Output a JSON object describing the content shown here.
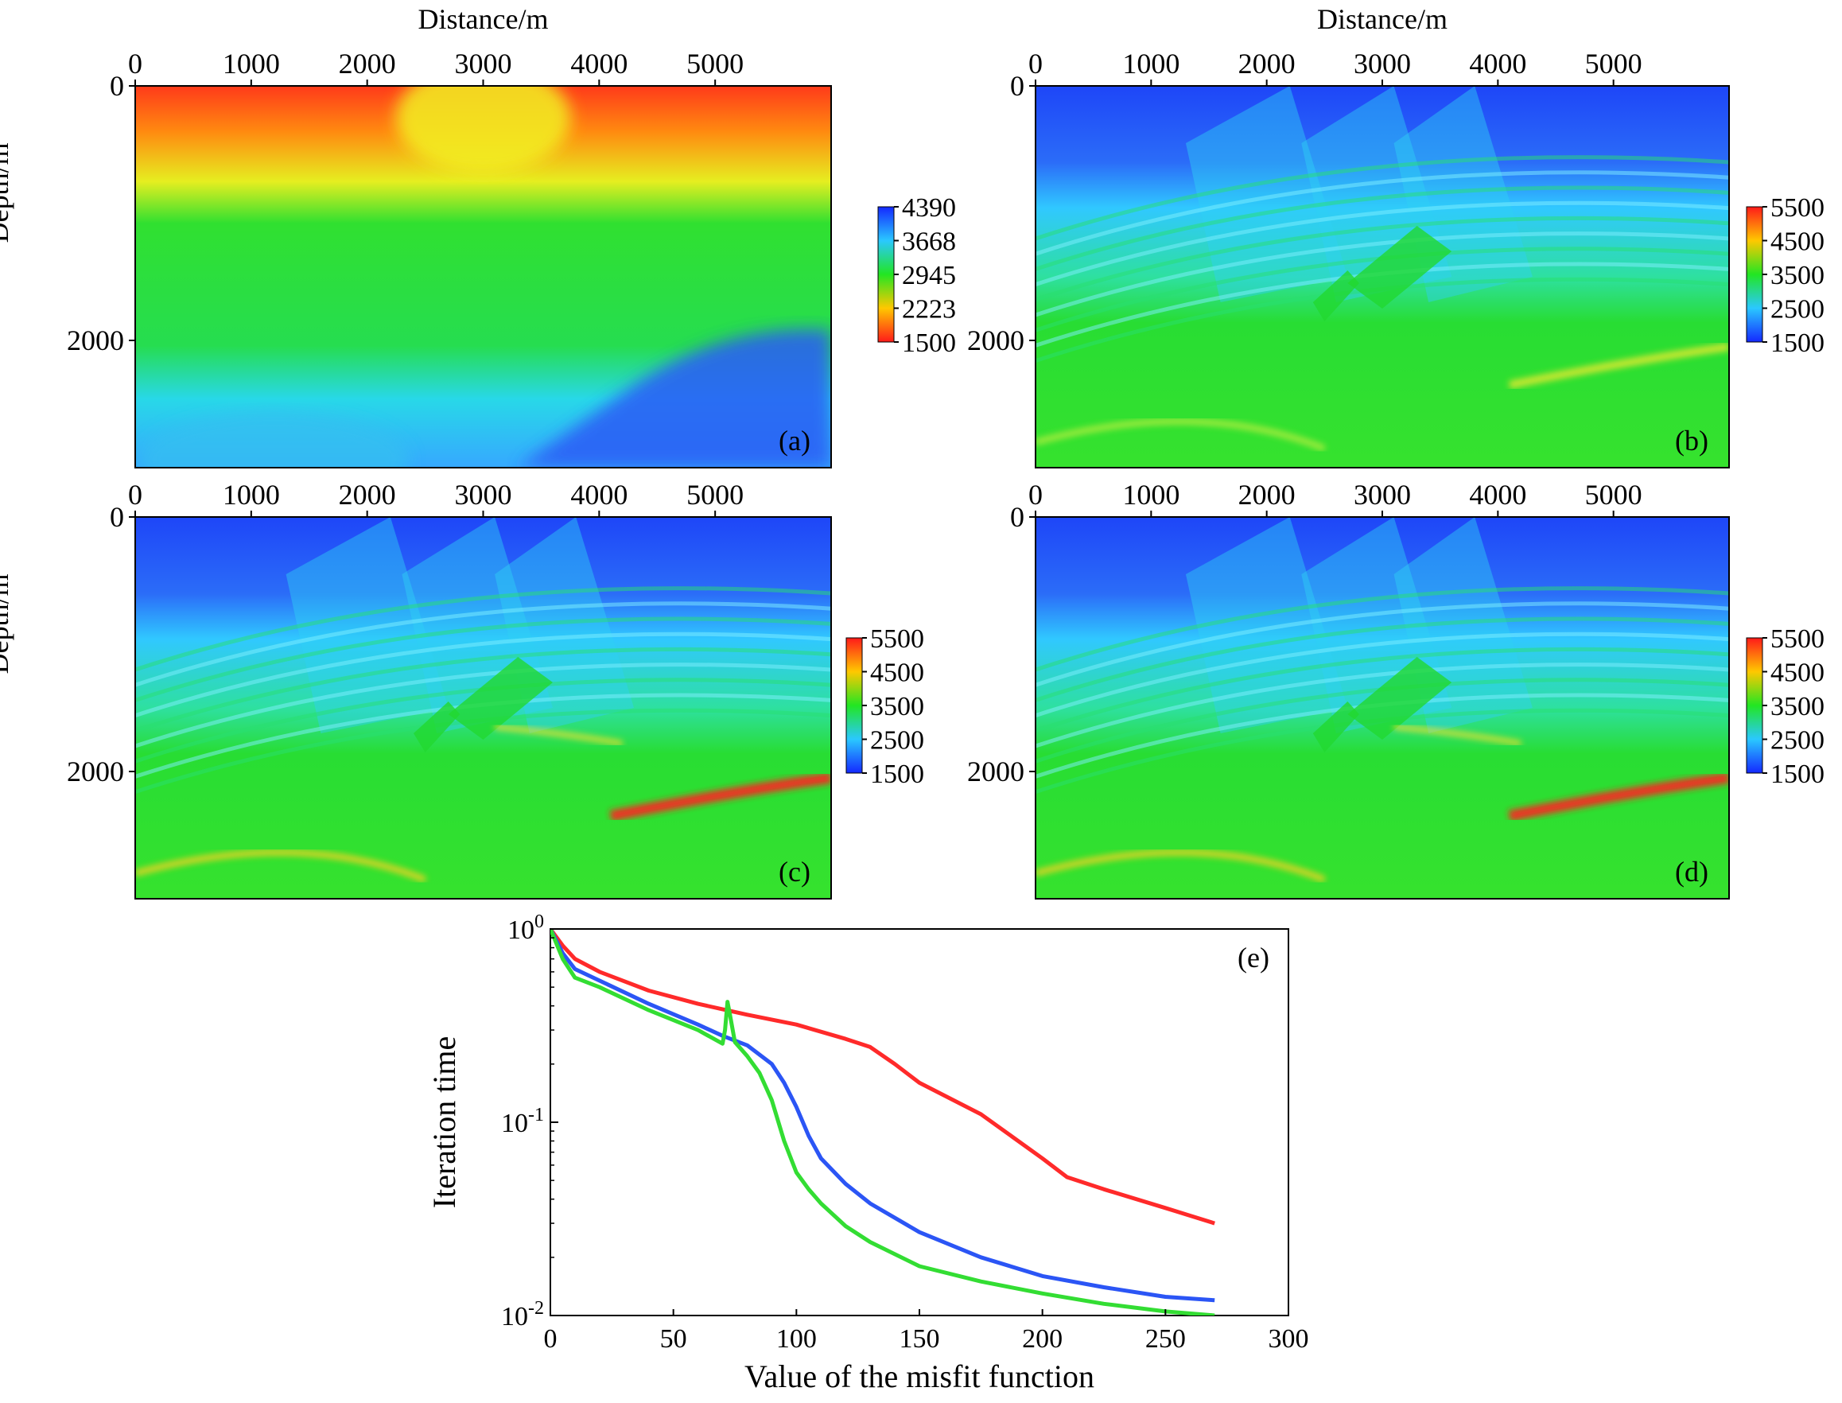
{
  "figure": {
    "panels": [
      {
        "id": "a",
        "label": "(a)",
        "xlabel": "Distance/m",
        "ylabel": "Depth/m",
        "xticks": [
          "0",
          "1000",
          "2000",
          "3000",
          "4000",
          "5000"
        ],
        "yticks": [
          "0",
          "2000"
        ],
        "xlim": [
          0,
          6000
        ],
        "ylim": [
          0,
          3000
        ],
        "colorbar": {
          "ticks": [
            "4390",
            "3668",
            "2945",
            "2223",
            "1500"
          ],
          "min": 1500,
          "max": 4390,
          "reversed": true
        },
        "description": "smooth initial velocity model"
      },
      {
        "id": "b",
        "label": "(b)",
        "xlabel": "Distance/m",
        "ylabel": "",
        "xticks": [
          "0",
          "1000",
          "2000",
          "3000",
          "4000",
          "5000"
        ],
        "yticks": [
          "0",
          "2000"
        ],
        "xlim": [
          0,
          6000
        ],
        "ylim": [
          0,
          3000
        ],
        "colorbar": {
          "ticks": [
            "5500",
            "4500",
            "3500",
            "2500",
            "1500"
          ],
          "min": 1500,
          "max": 5500,
          "reversed": false
        },
        "description": "inverted velocity model"
      },
      {
        "id": "c",
        "label": "(c)",
        "xlabel": "",
        "ylabel": "Depth/m",
        "xticks": [
          "0",
          "1000",
          "2000",
          "3000",
          "4000",
          "5000"
        ],
        "yticks": [
          "0",
          "2000"
        ],
        "xlim": [
          0,
          6000
        ],
        "ylim": [
          0,
          3000
        ],
        "colorbar": {
          "ticks": [
            "5500",
            "4500",
            "3500",
            "2500",
            "1500"
          ],
          "min": 1500,
          "max": 5500,
          "reversed": false
        },
        "description": "inverted velocity model"
      },
      {
        "id": "d",
        "label": "(d)",
        "xlabel": "",
        "ylabel": "",
        "xticks": [
          "0",
          "1000",
          "2000",
          "3000",
          "4000",
          "5000"
        ],
        "yticks": [
          "0",
          "2000"
        ],
        "xlim": [
          0,
          6000
        ],
        "ylim": [
          0,
          3000
        ],
        "colorbar": {
          "ticks": [
            "5500",
            "4500",
            "3500",
            "2500",
            "1500"
          ],
          "min": 1500,
          "max": 5500,
          "reversed": false
        },
        "description": "inverted velocity model"
      }
    ]
  },
  "chart_data": {
    "type": "line",
    "label": "(e)",
    "xlabel": "Value of the misfit function",
    "ylabel": "Iteration time",
    "xlim": [
      0,
      300
    ],
    "ylim": [
      0.01,
      1
    ],
    "yscale": "log",
    "xticks": [
      "0",
      "50",
      "100",
      "150",
      "200",
      "250",
      "300"
    ],
    "yticks": [
      {
        "base": "10",
        "exp": "0",
        "value": 1
      },
      {
        "base": "10",
        "exp": "-1",
        "value": 0.1
      },
      {
        "base": "10",
        "exp": "-2",
        "value": 0.01
      }
    ],
    "series": [
      {
        "name": "red",
        "color": "#ff2a2a",
        "x": [
          0,
          5,
          10,
          20,
          40,
          60,
          80,
          100,
          120,
          130,
          140,
          150,
          175,
          200,
          210,
          225,
          250,
          270
        ],
        "y": [
          1,
          0.82,
          0.7,
          0.6,
          0.48,
          0.41,
          0.36,
          0.32,
          0.27,
          0.245,
          0.2,
          0.16,
          0.11,
          0.065,
          0.052,
          0.045,
          0.036,
          0.03
        ]
      },
      {
        "name": "blue",
        "color": "#2b55f5",
        "x": [
          0,
          5,
          10,
          20,
          40,
          60,
          70,
          80,
          90,
          95,
          100,
          105,
          110,
          120,
          130,
          150,
          175,
          200,
          225,
          250,
          270
        ],
        "y": [
          1,
          0.75,
          0.62,
          0.54,
          0.41,
          0.32,
          0.28,
          0.25,
          0.2,
          0.16,
          0.12,
          0.085,
          0.065,
          0.048,
          0.038,
          0.027,
          0.02,
          0.016,
          0.014,
          0.0125,
          0.012
        ]
      },
      {
        "name": "green",
        "color": "#33dd33",
        "x": [
          0,
          5,
          10,
          20,
          40,
          60,
          70,
          71,
          72,
          73,
          75,
          80,
          85,
          90,
          95,
          100,
          105,
          110,
          120,
          130,
          150,
          175,
          200,
          225,
          250,
          270
        ],
        "y": [
          1,
          0.7,
          0.56,
          0.5,
          0.38,
          0.3,
          0.255,
          0.3,
          0.42,
          0.36,
          0.26,
          0.22,
          0.18,
          0.13,
          0.08,
          0.055,
          0.045,
          0.038,
          0.029,
          0.024,
          0.018,
          0.015,
          0.013,
          0.0115,
          0.0105,
          0.01
        ]
      }
    ]
  }
}
